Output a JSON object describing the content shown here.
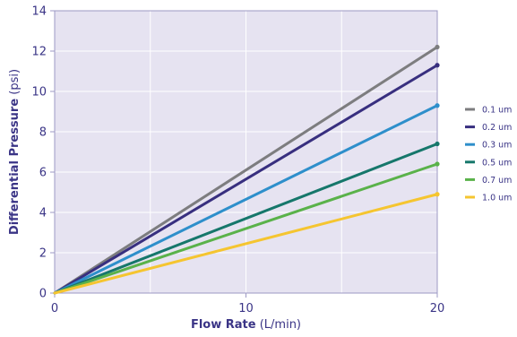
{
  "chart_data": {
    "type": "line",
    "title": "",
    "xlabel": {
      "bold": "Flow Rate",
      "normal": " (L/min)"
    },
    "ylabel": {
      "bold": "Differential Pressure",
      "normal": " (psi)"
    },
    "xlim": [
      0,
      20
    ],
    "ylim": [
      0,
      14
    ],
    "x_ticks": [
      0,
      10,
      20
    ],
    "y_ticks": [
      0,
      2,
      4,
      6,
      8,
      10,
      12,
      14
    ],
    "grid": true,
    "legend_position": "right",
    "colors": {
      "plot_background": "#e6e3f1",
      "grid": "#ffffff",
      "text": "#3a3486"
    },
    "series": [
      {
        "name": "0.1 um",
        "color": "#7d7d7f",
        "x": [
          0,
          20
        ],
        "y": [
          0,
          12.2
        ]
      },
      {
        "name": "0.2 um",
        "color": "#382f7f",
        "x": [
          0,
          20
        ],
        "y": [
          0,
          11.3
        ]
      },
      {
        "name": "0.3 um",
        "color": "#2e8fcb",
        "x": [
          0,
          20
        ],
        "y": [
          0,
          9.3
        ]
      },
      {
        "name": "0.5 um",
        "color": "#16776b",
        "x": [
          0,
          20
        ],
        "y": [
          0,
          7.4
        ]
      },
      {
        "name": "0.7 um",
        "color": "#5ab24a",
        "x": [
          0,
          20
        ],
        "y": [
          0,
          6.4
        ]
      },
      {
        "name": "1.0 um",
        "color": "#f5c530",
        "x": [
          0,
          20
        ],
        "y": [
          0,
          4.9
        ]
      }
    ]
  }
}
